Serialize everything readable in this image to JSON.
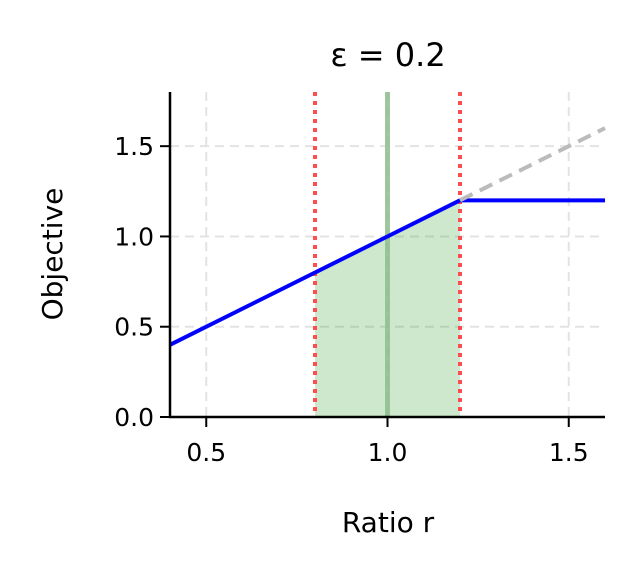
{
  "chart_data": {
    "type": "line",
    "title": "ε = 0.2",
    "xlabel": "Ratio r",
    "ylabel": "Objective",
    "xlim": [
      0.4,
      1.6
    ],
    "ylim": [
      0.0,
      1.8
    ],
    "xticks": [
      "0.5",
      "1.0",
      "1.5"
    ],
    "yticks": [
      "0.0",
      "0.5",
      "1.0",
      "1.5"
    ],
    "grid": true,
    "epsilon": 0.2,
    "series": [
      {
        "role": "clipped",
        "color": "#0000ff",
        "style": "solid",
        "points": [
          [
            0.4,
            0.4
          ],
          [
            1.2,
            1.2
          ],
          [
            1.6,
            1.2
          ]
        ]
      },
      {
        "role": "unclipped",
        "color": "#bbbbbb",
        "style": "dashed",
        "points": [
          [
            1.2,
            1.2
          ],
          [
            1.6,
            1.6
          ]
        ]
      }
    ],
    "shaded_region": {
      "x": [
        0.8,
        1.2
      ],
      "color": "#2ca02c",
      "points": [
        [
          0.8,
          0.8
        ],
        [
          1.2,
          1.2
        ]
      ]
    },
    "vlines": [
      {
        "x": 0.8,
        "color": "#ff4444",
        "style": "dotted"
      },
      {
        "x": 1.2,
        "color": "#ff4444",
        "style": "dotted"
      },
      {
        "x": 1.0,
        "color": "#8fbc8f",
        "style": "solid"
      }
    ]
  }
}
